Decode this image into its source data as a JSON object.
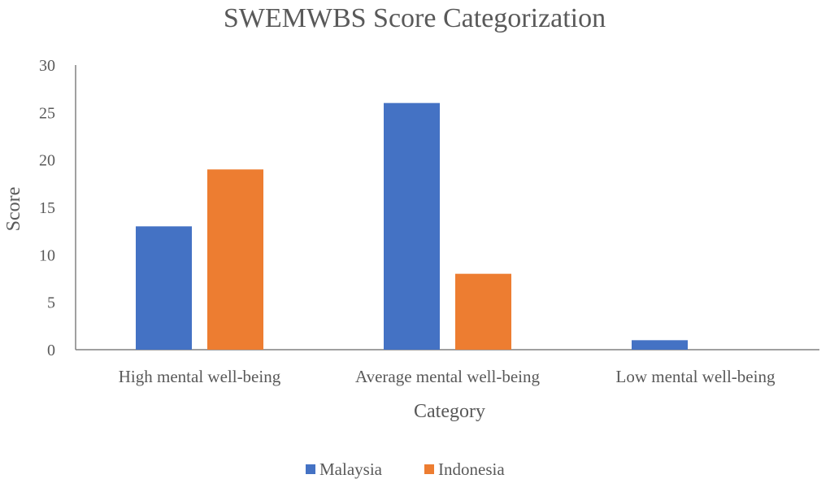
{
  "chart_data": {
    "type": "bar",
    "title": "SWEMWBS Score Categorization",
    "xlabel": "Category",
    "ylabel": "Score",
    "categories": [
      "High mental well-being",
      "Average mental well-being",
      "Low mental well-being"
    ],
    "series": [
      {
        "name": "Malaysia",
        "values": [
          13,
          26,
          1
        ],
        "color": "#4472C4"
      },
      {
        "name": "Indonesia",
        "values": [
          19,
          8,
          0
        ],
        "color": "#ED7D31"
      }
    ],
    "ylim": [
      0,
      30
    ],
    "yticks": [
      "0",
      "5",
      "10",
      "15",
      "20",
      "25",
      "30"
    ],
    "grid": false,
    "legend_position": "bottom",
    "axis_color": "#595959"
  }
}
